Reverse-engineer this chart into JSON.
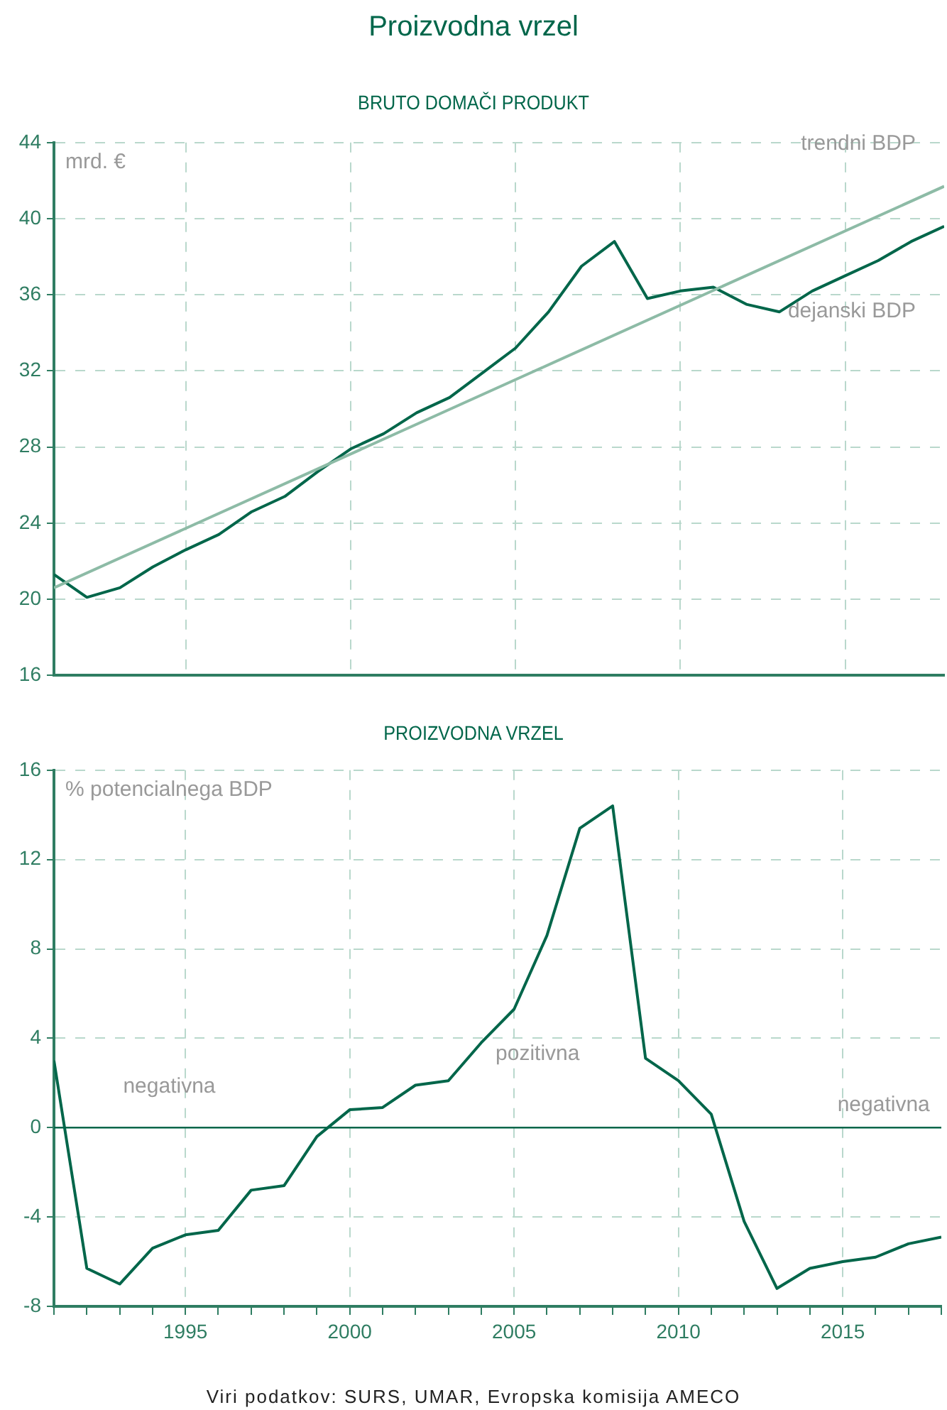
{
  "chart_data": [
    {
      "type": "line",
      "title": "Proizvodna vrzel",
      "subtitle": "BRUTO DOMAČI PRODUKT",
      "ylabel": "mrd. €",
      "x": [
        1991,
        1992,
        1993,
        1994,
        1995,
        1996,
        1997,
        1998,
        1999,
        2000,
        2001,
        2002,
        2003,
        2004,
        2005,
        2006,
        2007,
        2008,
        2009,
        2010,
        2011,
        2012,
        2013,
        2014,
        2015,
        2016,
        2017,
        2018
      ],
      "series": [
        {
          "name": "trendni BDP",
          "color": "#8dbba6",
          "x": [
            1991,
            2018
          ],
          "values": [
            20.6,
            41.7
          ]
        },
        {
          "name": "dejanski BDP",
          "color": "#00664a",
          "values": [
            21.3,
            20.1,
            20.6,
            21.7,
            22.6,
            23.4,
            24.6,
            25.4,
            26.7,
            27.9,
            28.7,
            29.8,
            30.6,
            31.9,
            33.2,
            35.1,
            37.5,
            38.8,
            35.8,
            36.2,
            36.4,
            35.5,
            35.1,
            36.2,
            37.0,
            37.8,
            38.8,
            39.6
          ]
        }
      ],
      "xlim": [
        1991,
        2018
      ],
      "xticks": [
        1995,
        2000,
        2005,
        2010,
        2015
      ],
      "ylim": [
        16,
        44
      ],
      "yticks": [
        16,
        20,
        24,
        28,
        32,
        36,
        40,
        44
      ],
      "tick_labels": "y",
      "grid": true,
      "legend": false,
      "marker": "none",
      "line_style": "solid"
    },
    {
      "type": "line",
      "subtitle": "PROIZVODNA VRZEL",
      "ylabel": "% potencialnega BDP",
      "x": [
        1991,
        1992,
        1993,
        1994,
        1995,
        1996,
        1997,
        1998,
        1999,
        2000,
        2001,
        2002,
        2003,
        2004,
        2005,
        2006,
        2007,
        2008,
        2009,
        2010,
        2011,
        2012,
        2013,
        2014,
        2015,
        2016,
        2017,
        2018
      ],
      "series": [
        {
          "color": "#00664a",
          "values": [
            3.0,
            -6.3,
            -7.0,
            -5.4,
            -4.8,
            -4.6,
            -2.8,
            -2.6,
            -0.4,
            0.8,
            0.9,
            1.9,
            2.1,
            3.8,
            5.3,
            8.6,
            13.4,
            14.4,
            3.1,
            2.1,
            0.6,
            -4.2,
            -7.2,
            -6.3,
            -6.0,
            -5.8,
            -5.2,
            -4.9
          ]
        }
      ],
      "xlim": [
        1991,
        2018
      ],
      "xticks": [
        {
          "value": 1991,
          "label": null
        },
        {
          "value": 1992,
          "label": null
        },
        {
          "value": 1993,
          "label": null
        },
        {
          "value": 1994,
          "label": null
        },
        1995,
        {
          "value": 1996,
          "label": null
        },
        {
          "value": 1997,
          "label": null
        },
        {
          "value": 1998,
          "label": null
        },
        {
          "value": 1999,
          "label": null
        },
        2000,
        {
          "value": 2001,
          "label": null
        },
        {
          "value": 2002,
          "label": null
        },
        {
          "value": 2003,
          "label": null
        },
        {
          "value": 2004,
          "label": null
        },
        2005,
        {
          "value": 2006,
          "label": null
        },
        {
          "value": 2007,
          "label": null
        },
        {
          "value": 2008,
          "label": null
        },
        {
          "value": 2009,
          "label": null
        },
        2010,
        {
          "value": 2011,
          "label": null
        },
        {
          "value": 2012,
          "label": null
        },
        {
          "value": 2013,
          "label": null
        },
        {
          "value": 2014,
          "label": null
        },
        2015,
        {
          "value": 2016,
          "label": null
        },
        {
          "value": 2017,
          "label": null
        },
        {
          "value": 2018,
          "label": null
        }
      ],
      "ylim": [
        -8,
        16
      ],
      "yticks": [
        -8,
        -4,
        0,
        4,
        8,
        12,
        16
      ],
      "ref_lines": [
        {
          "axis": "y",
          "value": 0,
          "color": "#00664a"
        }
      ],
      "annotations": [
        "negativna",
        "pozitivna",
        "negativna",
        "Viri podatkov: SURS, UMAR, Evropska komisija AMECO"
      ],
      "grid": true,
      "legend": false,
      "marker": "none",
      "line_style": "solid"
    }
  ]
}
